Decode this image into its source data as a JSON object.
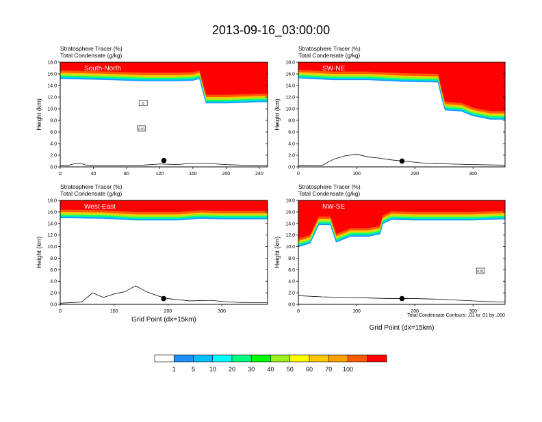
{
  "figure": {
    "title": "2013-09-16_03:00:00",
    "footnote": "Total Condensate Contours: .01 to .01 by .000"
  },
  "colors": {
    "bin_colors": [
      "#ffffff",
      "#1e90ff",
      "#00bfff",
      "#00ffff",
      "#00ff7f",
      "#00ff00",
      "#a0f020",
      "#ffff00",
      "#ffc800",
      "#ffa000",
      "#ff5a00",
      "#ff0000"
    ],
    "contour": "#000000"
  },
  "colorbar": {
    "labels": [
      "1",
      "5",
      "10",
      "20",
      "30",
      "40",
      "50",
      "60",
      "70",
      "100"
    ]
  },
  "chart_data": [
    {
      "type": "contour",
      "panel_label": "South-North",
      "field_labels": [
        "Stratosphere Tracer   (%)",
        "Total Condensate   (g/kg)"
      ],
      "ylabel": "Height (km)",
      "xlabel": "",
      "xlim": [
        0,
        250
      ],
      "ylim": [
        0,
        18
      ],
      "x_ticks": [
        0,
        40,
        80,
        120,
        160,
        200,
        240
      ],
      "y_ticks": [
        0.0,
        2.0,
        4.0,
        6.0,
        8.0,
        10.0,
        12.0,
        14.0,
        16.0,
        18.0
      ],
      "y_tick_labels": [
        "0.0",
        "2.0",
        "4.0",
        "6.0",
        "8.0",
        "10.0",
        "12.0",
        "14.0",
        "16.0",
        "18.0"
      ],
      "tropopause": [
        [
          0,
          15.2
        ],
        [
          60,
          15.0
        ],
        [
          100,
          14.8
        ],
        [
          140,
          14.8
        ],
        [
          160,
          14.9
        ],
        [
          168,
          15.2
        ],
        [
          172,
          13.0
        ],
        [
          176,
          11.0
        ],
        [
          200,
          11.0
        ],
        [
          240,
          11.2
        ],
        [
          250,
          11.2
        ]
      ],
      "terrain": [
        [
          0,
          0.3
        ],
        [
          8,
          0.2
        ],
        [
          16,
          0.5
        ],
        [
          24,
          0.6
        ],
        [
          32,
          0.3
        ],
        [
          48,
          0.2
        ],
        [
          80,
          0.2
        ],
        [
          100,
          0.3
        ],
        [
          120,
          0.5
        ],
        [
          140,
          0.4
        ],
        [
          160,
          0.6
        ],
        [
          176,
          0.6
        ],
        [
          200,
          0.4
        ],
        [
          240,
          0.2
        ],
        [
          250,
          0.3
        ]
      ],
      "point": [
        125,
        1.1
      ],
      "contour_boxes": [
        {
          "x": 100,
          "y": 11,
          "label": "0"
        },
        {
          "x": 98,
          "y": 6.6,
          "label": "0.01"
        }
      ]
    },
    {
      "type": "contour",
      "panel_label": "SW-NE",
      "field_labels": [
        "Stratosphere Tracer   (%)",
        "Total Condensate   (g/kg)"
      ],
      "ylabel": "Height (km)",
      "xlabel": "",
      "xlim": [
        0,
        355
      ],
      "ylim": [
        0,
        18
      ],
      "x_ticks": [
        0,
        100,
        200,
        300
      ],
      "y_ticks": [
        0.0,
        2.0,
        4.0,
        6.0,
        8.0,
        10.0,
        12.0,
        14.0,
        16.0,
        18.0
      ],
      "y_tick_labels": [
        "0.0",
        "2.0",
        "4.0",
        "6.0",
        "8.0",
        "10.0",
        "12.0",
        "14.0",
        "16.0",
        "18.0"
      ],
      "tropopause": [
        [
          0,
          15.3
        ],
        [
          60,
          15.0
        ],
        [
          120,
          15.0
        ],
        [
          180,
          14.7
        ],
        [
          240,
          14.6
        ],
        [
          246,
          12.0
        ],
        [
          252,
          9.8
        ],
        [
          280,
          9.6
        ],
        [
          300,
          8.8
        ],
        [
          330,
          8.2
        ],
        [
          355,
          8.2
        ]
      ],
      "terrain": [
        [
          0,
          0.3
        ],
        [
          40,
          0.2
        ],
        [
          60,
          1.3
        ],
        [
          80,
          1.9
        ],
        [
          100,
          2.2
        ],
        [
          120,
          1.7
        ],
        [
          140,
          1.5
        ],
        [
          160,
          1.2
        ],
        [
          180,
          1.0
        ],
        [
          220,
          0.6
        ],
        [
          260,
          0.5
        ],
        [
          300,
          0.4
        ],
        [
          355,
          0.3
        ]
      ],
      "point": [
        178,
        1.0
      ],
      "contour_boxes": []
    },
    {
      "type": "contour",
      "panel_label": "West-East",
      "field_labels": [
        "Stratosphere Tracer   (%)",
        "Total Condensate   (g/kg)"
      ],
      "ylabel": "Height (km)",
      "xlabel": "Grid Point (dx=15km)",
      "xlim": [
        0,
        385
      ],
      "ylim": [
        0,
        18
      ],
      "x_ticks": [
        0,
        100,
        200,
        300
      ],
      "y_ticks": [
        0.0,
        2.0,
        4.0,
        6.0,
        8.0,
        10.0,
        12.0,
        14.0,
        16.0,
        18.0
      ],
      "y_tick_labels": [
        "0.0",
        "2.0",
        "4.0",
        "6.0",
        "8.0",
        "10.0",
        "12.0",
        "14.0",
        "16.0",
        "18.0"
      ],
      "tropopause": [
        [
          0,
          15.0
        ],
        [
          80,
          14.9
        ],
        [
          140,
          14.6
        ],
        [
          180,
          14.6
        ],
        [
          220,
          14.6
        ],
        [
          260,
          14.9
        ],
        [
          300,
          14.8
        ],
        [
          340,
          14.8
        ],
        [
          385,
          14.8
        ]
      ],
      "terrain": [
        [
          0,
          0.2
        ],
        [
          40,
          0.4
        ],
        [
          60,
          2.0
        ],
        [
          80,
          1.2
        ],
        [
          100,
          1.8
        ],
        [
          120,
          2.2
        ],
        [
          140,
          3.2
        ],
        [
          160,
          2.2
        ],
        [
          180,
          1.5
        ],
        [
          200,
          1.0
        ],
        [
          240,
          0.6
        ],
        [
          280,
          0.7
        ],
        [
          300,
          0.5
        ],
        [
          340,
          0.3
        ],
        [
          385,
          0.3
        ]
      ],
      "point": [
        192,
        1.0
      ],
      "contour_boxes": []
    },
    {
      "type": "contour",
      "panel_label": "NW-SE",
      "field_labels": [
        "Stratosphere Tracer   (%)",
        "Total Condensate   (g/kg)"
      ],
      "ylabel": "Height (km)",
      "xlabel": "Grid Point (dx=15km)",
      "xlim": [
        0,
        355
      ],
      "ylim": [
        0,
        18
      ],
      "x_ticks": [
        0,
        100,
        200,
        300
      ],
      "y_ticks": [
        0.0,
        2.0,
        4.0,
        6.0,
        8.0,
        10.0,
        12.0,
        14.0,
        16.0,
        18.0
      ],
      "y_tick_labels": [
        "0.0",
        "2.0",
        "4.0",
        "6.0",
        "8.0",
        "10.0",
        "12.0",
        "14.0",
        "16.0",
        "18.0"
      ],
      "tropopause": [
        [
          0,
          10.0
        ],
        [
          20,
          10.6
        ],
        [
          35,
          13.8
        ],
        [
          55,
          13.8
        ],
        [
          65,
          10.8
        ],
        [
          90,
          11.8
        ],
        [
          120,
          11.8
        ],
        [
          140,
          12.2
        ],
        [
          145,
          14.0
        ],
        [
          160,
          14.7
        ],
        [
          200,
          14.6
        ],
        [
          260,
          14.6
        ],
        [
          300,
          14.6
        ],
        [
          355,
          14.8
        ]
      ],
      "terrain": [
        [
          0,
          1.5
        ],
        [
          40,
          1.3
        ],
        [
          80,
          1.2
        ],
        [
          120,
          1.1
        ],
        [
          160,
          1.0
        ],
        [
          200,
          1.0
        ],
        [
          240,
          0.9
        ],
        [
          280,
          0.7
        ],
        [
          320,
          0.5
        ],
        [
          355,
          0.4
        ]
      ],
      "point": [
        178,
        1.0
      ],
      "contour_boxes": [
        {
          "x": 313,
          "y": 5.8,
          "label": "0.01"
        }
      ]
    }
  ]
}
